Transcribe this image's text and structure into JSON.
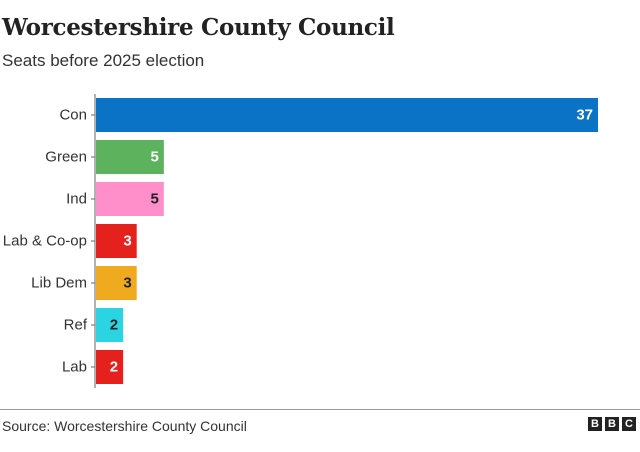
{
  "header": {
    "title": "Worcestershire County Council",
    "subtitle": "Seats before 2025 election"
  },
  "footer": {
    "source": "Source: Worcestershire County Council",
    "logo_letters": [
      "B",
      "B",
      "C"
    ]
  },
  "chart_data": {
    "type": "bar",
    "orientation": "horizontal",
    "title": "Worcestershire County Council",
    "subtitle": "Seats before 2025 election",
    "categories": [
      "Con",
      "Green",
      "Ind",
      "Lab & Co-op",
      "Lib Dem",
      "Ref",
      "Lab"
    ],
    "values": [
      37,
      5,
      5,
      3,
      3,
      2,
      2
    ],
    "colors": [
      "#0a73c6",
      "#5cb25d",
      "#ff8fcb",
      "#e4211c",
      "#f0aa1f",
      "#2ad4e2",
      "#e4211c"
    ],
    "label_colors": [
      "#ffffff",
      "#ffffff",
      "#222222",
      "#ffffff",
      "#222222",
      "#222222",
      "#ffffff"
    ],
    "xlim": [
      0,
      37
    ],
    "grid": false,
    "legend": "none",
    "xlabel": "",
    "ylabel": ""
  }
}
